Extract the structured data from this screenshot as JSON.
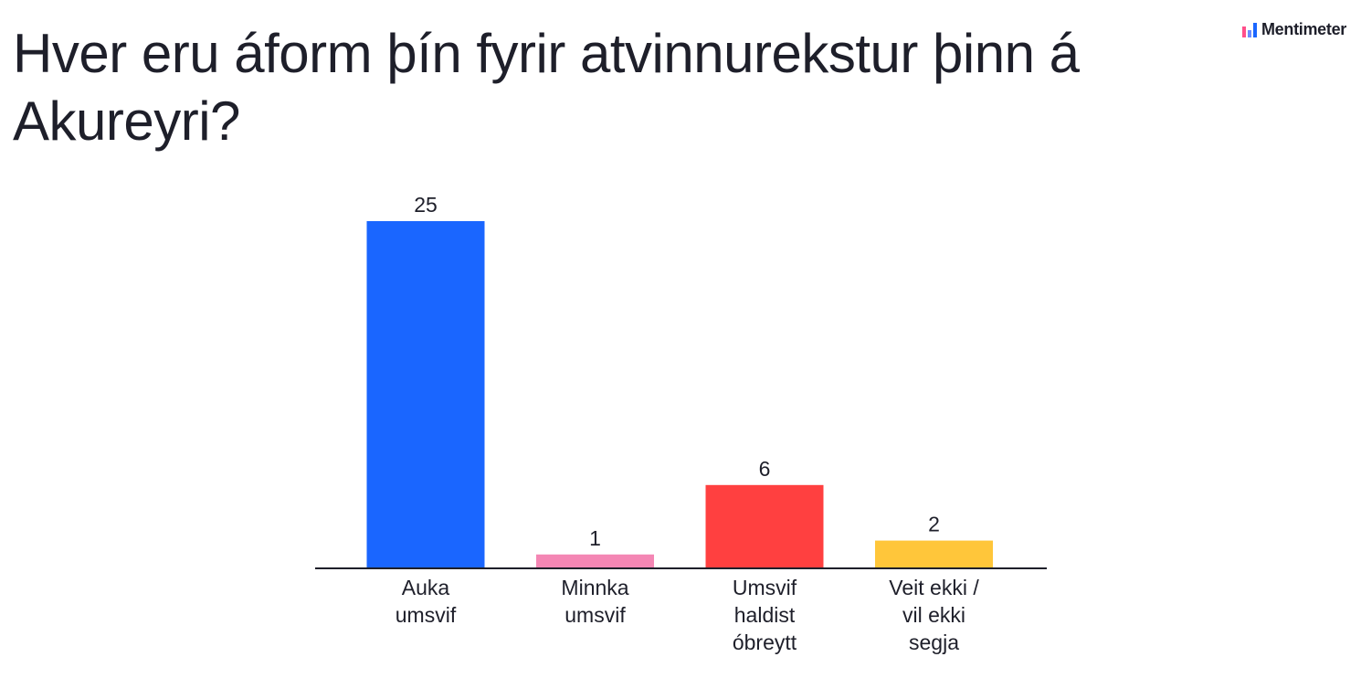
{
  "title": "Hver eru áform þín fyrir atvinnurekstur þinn á Akureyri?",
  "brand": {
    "name": "Mentimeter",
    "icon": "mentimeter-logo-icon"
  },
  "chart_data": {
    "type": "bar",
    "title": "Hver eru áform þín fyrir atvinnurekstur þinn á Akureyri?",
    "categories": [
      [
        "Auka",
        "umsvif"
      ],
      [
        "Minnka",
        "umsvif"
      ],
      [
        "Umsvif",
        "haldist",
        "óbreytt"
      ],
      [
        "Veit ekki /",
        "vil ekki",
        "segja"
      ]
    ],
    "values": [
      25,
      1,
      6,
      2
    ],
    "colors": [
      "#1a66ff",
      "#f486b4",
      "#ff4040",
      "#ffc63a"
    ],
    "ylim": [
      0,
      25
    ],
    "grid": false,
    "legend": "none",
    "data_labels": true
  }
}
